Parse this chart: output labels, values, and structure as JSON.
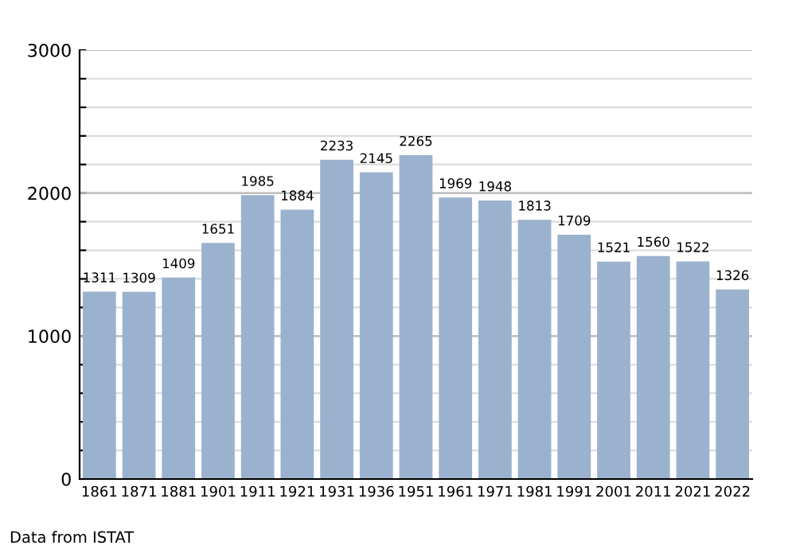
{
  "chart_data": {
    "type": "bar",
    "categories": [
      "1861",
      "1871",
      "1881",
      "1901",
      "1911",
      "1921",
      "1931",
      "1936",
      "1951",
      "1961",
      "1971",
      "1981",
      "1991",
      "2001",
      "2011",
      "2021",
      "2022"
    ],
    "values": [
      1311,
      1309,
      1409,
      1651,
      1985,
      1884,
      2233,
      2145,
      2265,
      1969,
      1948,
      1813,
      1709,
      1521,
      1560,
      1522,
      1326
    ],
    "color": "#9bb2cf",
    "data_labels": true,
    "ylim": [
      0,
      3000
    ],
    "yticks": [
      0,
      {
        "value": 200,
        "label": null
      },
      {
        "value": 400,
        "label": null
      },
      {
        "value": 600,
        "label": null
      },
      {
        "value": 800,
        "label": null
      },
      1000,
      {
        "value": 1200,
        "label": null
      },
      {
        "value": 1400,
        "label": null
      },
      {
        "value": 1600,
        "label": null
      },
      {
        "value": 1800,
        "label": null
      },
      2000,
      {
        "value": 2200,
        "label": null
      },
      {
        "value": 2400,
        "label": null
      },
      {
        "value": 2600,
        "label": null
      },
      {
        "value": 2800,
        "label": null
      },
      3000
    ],
    "grid": "y",
    "annotations": [
      "Data from ISTAT"
    ]
  }
}
